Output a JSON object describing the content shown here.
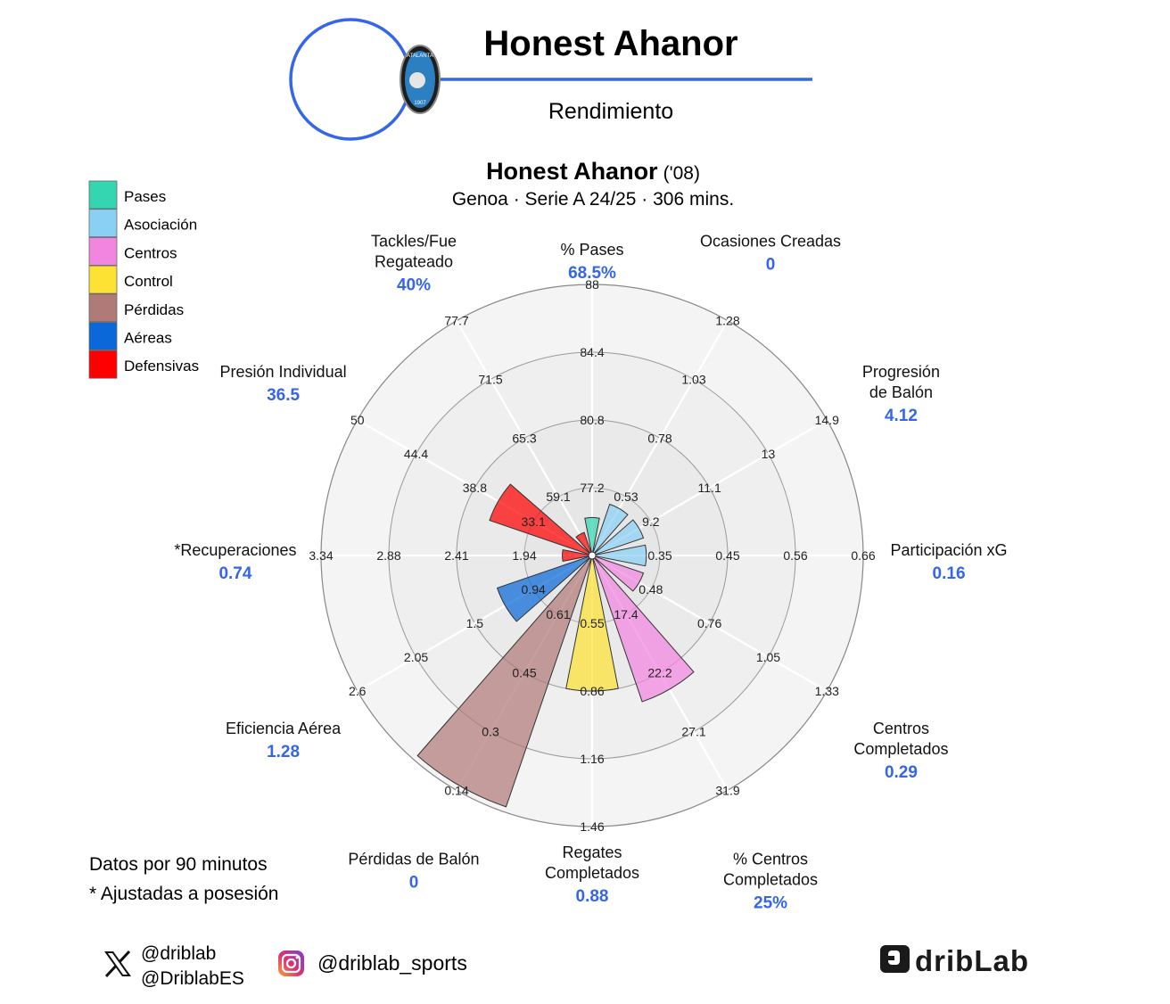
{
  "header": {
    "player_name": "Honest Ahanor",
    "subtitle": "Rendimiento",
    "badge_text": "ATALANTA",
    "badge_year": "1907"
  },
  "chart_title": {
    "name": "Honest Ahanor",
    "year": "('08)",
    "context": "Genoa · Serie A 24/25 · 306 mins."
  },
  "legend": [
    {
      "label": "Pases",
      "color": "#33d6b0"
    },
    {
      "label": "Asociación",
      "color": "#8ad0f5"
    },
    {
      "label": "Centros",
      "color": "#f285e0"
    },
    {
      "label": "Control",
      "color": "#fde234"
    },
    {
      "label": "Pérdidas",
      "color": "#b07a78"
    },
    {
      "label": "Aéreas",
      "color": "#0a68d8"
    },
    {
      "label": "Defensivas",
      "color": "#ff0000"
    }
  ],
  "footnotes": {
    "line1": "Datos por 90 minutos",
    "line2": "* Ajustadas a posesión"
  },
  "social": {
    "x_handle_1": "@driblab",
    "x_handle_2": "@DriblabES",
    "instagram": "@driblab_sports",
    "logo_text": "dribLab"
  },
  "chart_data": {
    "type": "radar-bar",
    "categories": [
      {
        "label": "% Pases",
        "value": "68.5%",
        "group": "Pases",
        "percentile": 0.14,
        "ticks": [
          "77.2",
          "80.8",
          "84.4",
          "88"
        ]
      },
      {
        "label": "Ocasiones Creadas",
        "value": "0",
        "group": "Asociación",
        "percentile": 0.2,
        "ticks": [
          "0.53",
          "0.78",
          "1.03",
          "1.28"
        ]
      },
      {
        "label": "Progresión de Balón",
        "value": "4.12",
        "group": "Asociación",
        "percentile": 0.2,
        "ticks": [
          "9.2",
          "11.1",
          "13",
          "14.9"
        ]
      },
      {
        "label": "Participación xG",
        "value": "0.16",
        "group": "Asociación",
        "percentile": 0.2,
        "ticks": [
          "0.35",
          "0.45",
          "0.56",
          "0.66"
        ]
      },
      {
        "label": "Centros Completados",
        "value": "0.29",
        "group": "Centros",
        "percentile": 0.2,
        "ticks": [
          "0.48",
          "0.76",
          "1.05",
          "1.33"
        ]
      },
      {
        "label": "% Centros Completados",
        "value": "25%",
        "group": "Centros",
        "percentile": 0.57,
        "ticks": [
          "17.4",
          "22.2",
          "27.1",
          "31.9"
        ]
      },
      {
        "label": "Regates Completados",
        "value": "0.88",
        "group": "Control",
        "percentile": 0.5,
        "ticks": [
          "0.55",
          "0.86",
          "1.16",
          "1.46"
        ]
      },
      {
        "label": "Pérdidas de Balón",
        "value": "0",
        "group": "Pérdidas",
        "percentile": 0.98,
        "ticks": [
          "0.61",
          "0.45",
          "0.3",
          "0.14"
        ]
      },
      {
        "label": "Eficiencia Aérea",
        "value": "1.28",
        "group": "Aéreas",
        "percentile": 0.37,
        "ticks": [
          "0.94",
          "1.5",
          "2.05",
          "2.6"
        ]
      },
      {
        "label": "*Recuperaciones",
        "value": "0.74",
        "group": "Defensivas",
        "percentile": 0.11,
        "ticks": [
          "1.94",
          "2.41",
          "2.88",
          "3.34"
        ]
      },
      {
        "label": "Presión Individual",
        "value": "36.5",
        "group": "Defensivas",
        "percentile": 0.4,
        "ticks": [
          "33.1",
          "38.8",
          "44.4",
          "50"
        ]
      },
      {
        "label": "Tackles/Fue Regateado",
        "value": "40%",
        "group": "Defensivas",
        "percentile": 0.09,
        "ticks": [
          "59.1",
          "65.3",
          "71.5",
          "77.7"
        ]
      }
    ]
  }
}
